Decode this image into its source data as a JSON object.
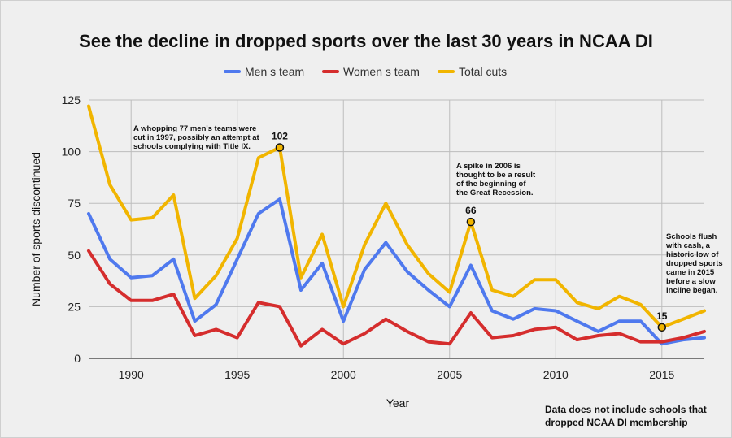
{
  "chart_data": {
    "type": "line",
    "title": "See the decline in dropped sports over the last 30 years in NCAA DI",
    "xlabel": "Year",
    "ylabel": "Number of sports discontinued",
    "x": [
      1988,
      1989,
      1990,
      1991,
      1992,
      1993,
      1994,
      1995,
      1996,
      1997,
      1998,
      1999,
      2000,
      2001,
      2002,
      2003,
      2004,
      2005,
      2006,
      2007,
      2008,
      2009,
      2010,
      2011,
      2012,
      2013,
      2014,
      2015,
      2016,
      2017
    ],
    "xlim": [
      1988,
      2017
    ],
    "ylim": [
      0,
      125
    ],
    "xticks": [
      1990,
      1995,
      2000,
      2005,
      2010,
      2015
    ],
    "yticks": [
      0,
      25,
      50,
      75,
      100,
      125
    ],
    "grid": true,
    "legend_position": "top-center",
    "series": [
      {
        "name": "Men s team",
        "color": "#4f79ee",
        "values": [
          70,
          48,
          39,
          40,
          48,
          18,
          26,
          48,
          70,
          77,
          33,
          46,
          18,
          43,
          56,
          42,
          33,
          25,
          45,
          23,
          19,
          24,
          23,
          18,
          13,
          18,
          18,
          7,
          9,
          10
        ]
      },
      {
        "name": "Women s team",
        "color": "#d52d2d",
        "values": [
          52,
          36,
          28,
          28,
          31,
          11,
          14,
          10,
          27,
          25,
          6,
          14,
          7,
          12,
          19,
          13,
          8,
          7,
          22,
          10,
          11,
          14,
          15,
          9,
          11,
          12,
          8,
          8,
          10,
          13
        ]
      },
      {
        "name": "Total cuts",
        "color": "#f1b500",
        "values": [
          122,
          84,
          67,
          68,
          79,
          29,
          40,
          58,
          97,
          102,
          39,
          60,
          25,
          55,
          75,
          55,
          41,
          32,
          66,
          33,
          30,
          38,
          38,
          27,
          24,
          30,
          26,
          15,
          19,
          23
        ]
      }
    ],
    "callouts": [
      {
        "label": "102",
        "x": 1997,
        "y": 102
      },
      {
        "label": "66",
        "x": 2006,
        "y": 66
      },
      {
        "label": "15",
        "x": 2015,
        "y": 15
      }
    ],
    "annotations": [
      {
        "lines": [
          "A whopping 77 men's teams were",
          "cut in 1997, possibly an attempt at",
          "schools complying with Title IX."
        ]
      },
      {
        "lines": [
          "A spike in 2006 is",
          "thought to be a result",
          "of the beginning of",
          "the Great Recession."
        ]
      },
      {
        "lines": [
          "Schools flush",
          "with cash, a",
          "historic low of",
          "dropped sports",
          "came in 2015",
          "before a slow",
          "incline began."
        ]
      }
    ],
    "footnote": [
      "Data does not include schools that",
      "dropped NCAA DI membership"
    ]
  }
}
